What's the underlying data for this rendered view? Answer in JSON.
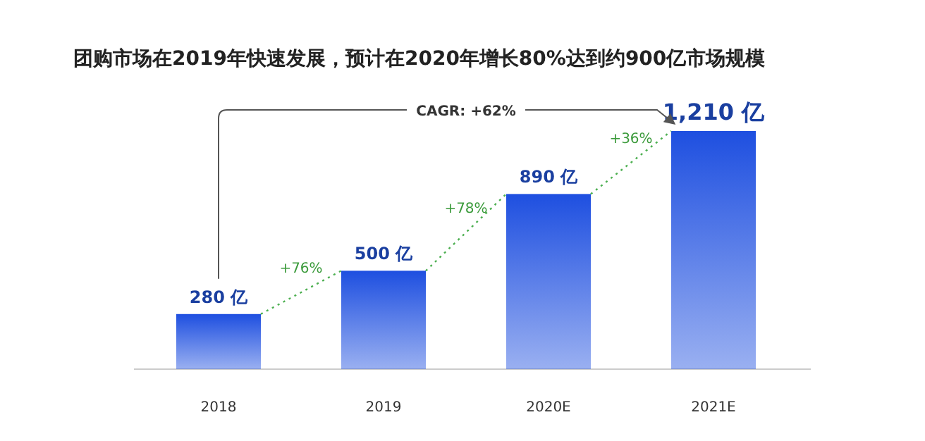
{
  "chart_data": {
    "type": "bar",
    "title": "团购市场在2019年快速发展，预计在2020年增长80%达到约900亿市场规模",
    "categories": [
      "2018",
      "2019",
      "2020E",
      "2021E"
    ],
    "values": [
      280,
      500,
      890,
      1210
    ],
    "value_labels": [
      "280 亿",
      "500 亿",
      "890 亿",
      "1,210 亿"
    ],
    "color": "#1e4fe0",
    "relative": false,
    "annotations": [
      "CAGR: +62%",
      "+76%",
      "+78%",
      "+36%"
    ]
  }
}
